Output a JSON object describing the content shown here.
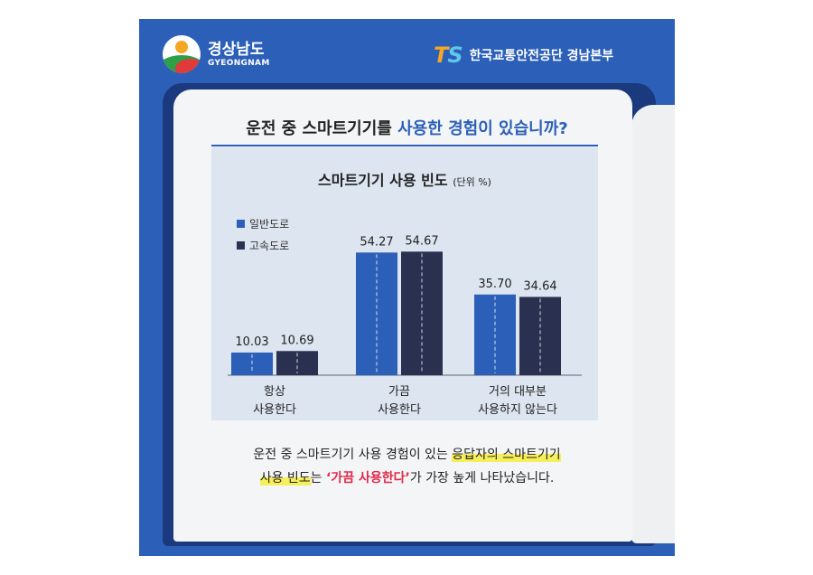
{
  "header": {
    "left_logo_kr": "경상남도",
    "left_logo_en": "GYEONGNAM",
    "right_logo_mark_t": "T",
    "right_logo_mark_s": "S",
    "right_org_name": "한국교통안전공단 경남본부"
  },
  "question": {
    "prefix": "운전 중 스마트기기를 ",
    "highlight": "사용한 경험이 있습니까?"
  },
  "colors": {
    "series_general": "#2b5fb8",
    "series_highway": "#2a3150",
    "card_bg": "#2b5fb8",
    "highlight_yellow": "#f6ef5a",
    "emphasis_red": "#e0284a"
  },
  "chart_data": {
    "type": "bar",
    "title": "스마트기기 사용 빈도",
    "unit": "(단위 %)",
    "categories": [
      [
        "항상",
        "사용한다"
      ],
      [
        "가끔",
        "사용한다"
      ],
      [
        "거의 대부분",
        "사용하지 않는다"
      ]
    ],
    "series": [
      {
        "name": "일반도로",
        "values": [
          10.03,
          54.27,
          35.7
        ],
        "labels": [
          "10.03",
          "54.27",
          "35.70"
        ]
      },
      {
        "name": "고속도로",
        "values": [
          10.69,
          54.67,
          34.64
        ],
        "labels": [
          "10.69",
          "54.67",
          "34.64"
        ]
      }
    ],
    "ylim": [
      0,
      60
    ],
    "grid": false,
    "legend_position": "top-left"
  },
  "summary": {
    "line1_plain": "운전 중 스마트기기 사용 경험이 있는 ",
    "line1_highlight": "응답자의 스마트기기",
    "line2_highlight": "사용 빈도",
    "line2_mid": "는 ",
    "line2_emphasis": "‘가끔 사용한다’",
    "line2_end": "가 가장 높게 나타났습니다."
  }
}
